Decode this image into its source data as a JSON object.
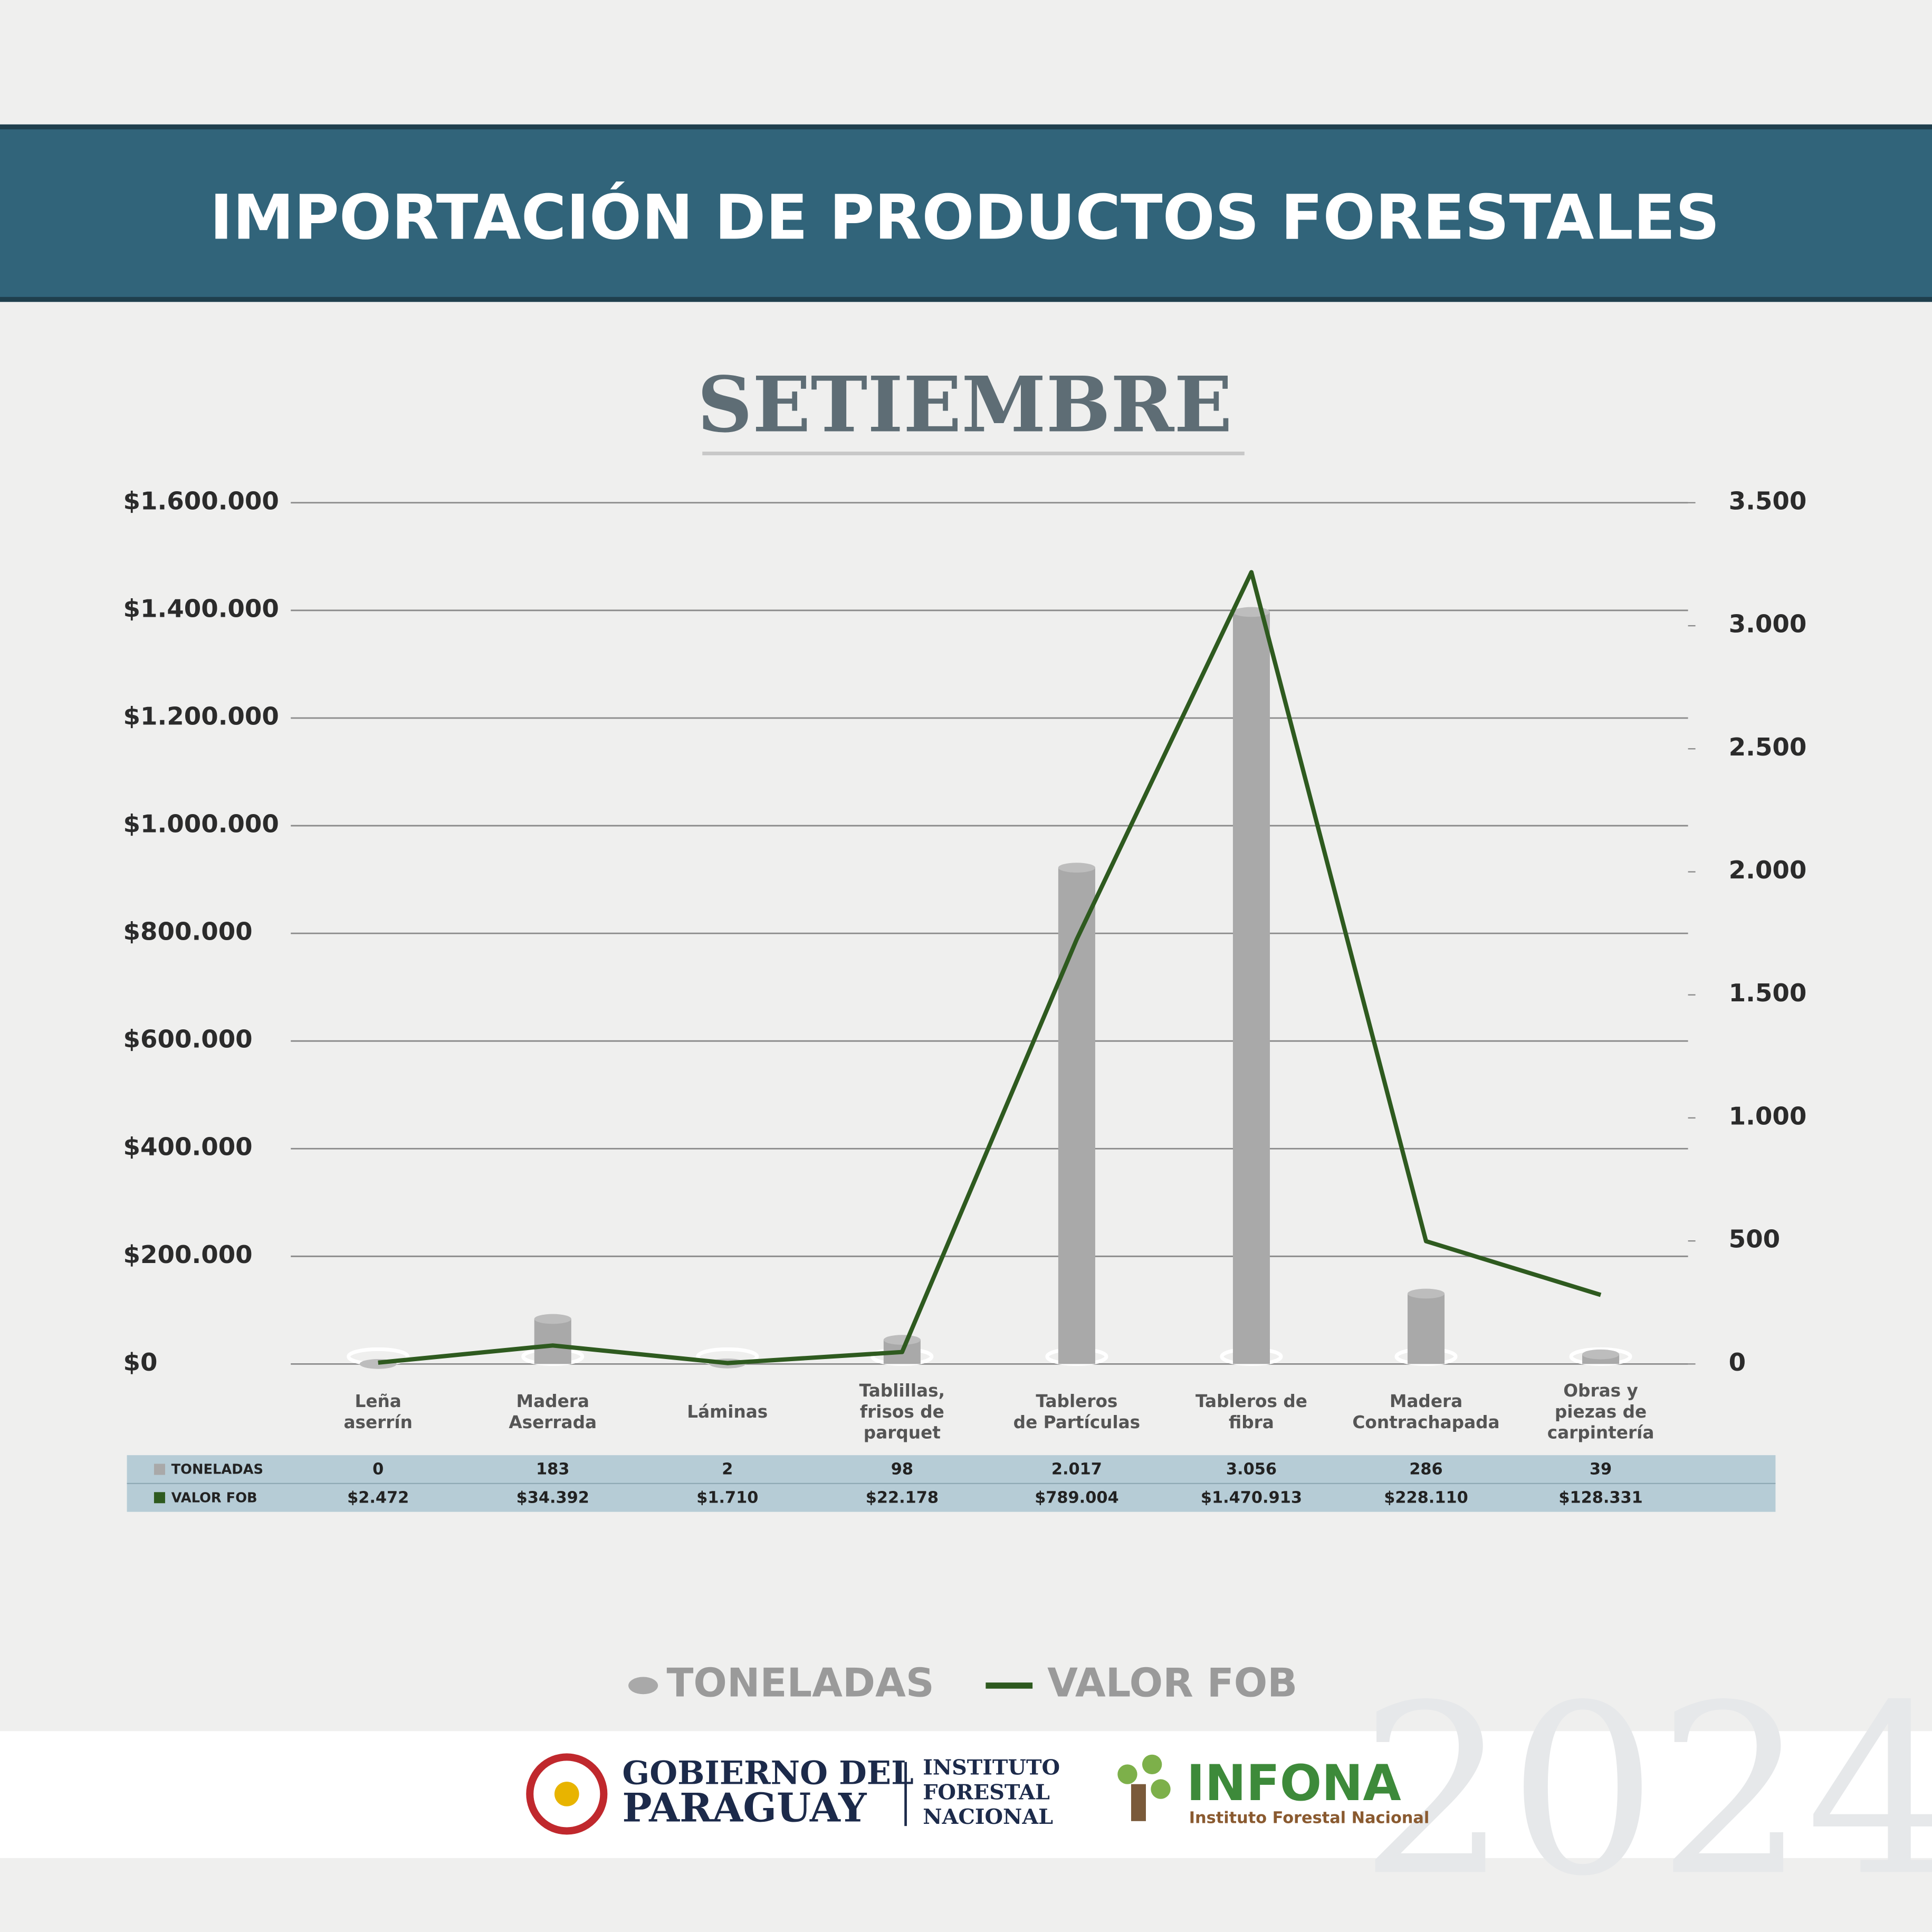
{
  "chart_data": {
    "type": "combo",
    "title": "IMPORTACIÓN DE PRODUCTOS FORESTALES",
    "subtitle": "SETIEMBRE",
    "categories": [
      "Leña\naserrín",
      "Madera\nAserrada",
      "Láminas",
      "Tablillas,\nfrisos de\nparquet",
      "Tableros\nde Partículas",
      "Tableros de\nfibra",
      "Madera\nContrachapada",
      "Obras y\npiezas de\ncarpintería"
    ],
    "series": [
      {
        "name": "TONELADAS",
        "type": "bar",
        "axis": "y2",
        "color": "#a9a9a9",
        "values": [
          0,
          183,
          2,
          98,
          2017,
          3056,
          286,
          39
        ],
        "value_labels": [
          "0",
          "183",
          "2",
          "98",
          "2.017",
          "3.056",
          "286",
          "39"
        ]
      },
      {
        "name": "VALOR FOB",
        "type": "line",
        "axis": "y",
        "color": "#2e5a1f",
        "values": [
          2472,
          34392,
          1710,
          22178,
          789004,
          1470913,
          228110,
          128331
        ],
        "value_labels": [
          "$2.472",
          "$34.392",
          "$1.710",
          "$22.178",
          "$789.004",
          "$1.470.913",
          "$228.110",
          "$128.331"
        ]
      }
    ],
    "ylim": [
      0,
      1600000
    ],
    "yticks": [
      {
        "value": 0,
        "label": "$0"
      },
      {
        "value": 200000,
        "label": "$200.000"
      },
      {
        "value": 400000,
        "label": "$400.000"
      },
      {
        "value": 600000,
        "label": "$600.000"
      },
      {
        "value": 800000,
        "label": "$800.000"
      },
      {
        "value": 1000000,
        "label": "$1.000.000"
      },
      {
        "value": 1200000,
        "label": "$1.200.000"
      },
      {
        "value": 1400000,
        "label": "$1.400.000"
      },
      {
        "value": 1600000,
        "label": "$1.600.000"
      }
    ],
    "y2lim": [
      0,
      3500
    ],
    "y2ticks": [
      0,
      500,
      {
        "value": 1000,
        "label": "1.000"
      },
      {
        "value": 1500,
        "label": "1.500"
      },
      {
        "value": 2000,
        "label": "2.000"
      },
      {
        "value": 2500,
        "label": "2.500"
      },
      {
        "value": 3000,
        "label": "3.000"
      },
      {
        "value": 3500,
        "label": "3.500"
      }
    ],
    "grid": true,
    "legend": "bottom"
  },
  "footer": {
    "gobierno": [
      "GOBIERNO DEL",
      "PARAGUAY"
    ],
    "instituto": [
      "INSTITUTO",
      "FORESTAL",
      "NACIONAL"
    ],
    "infona": "INFONA",
    "infona_sub": "Instituto Forestal Nacional",
    "year": "2024"
  }
}
